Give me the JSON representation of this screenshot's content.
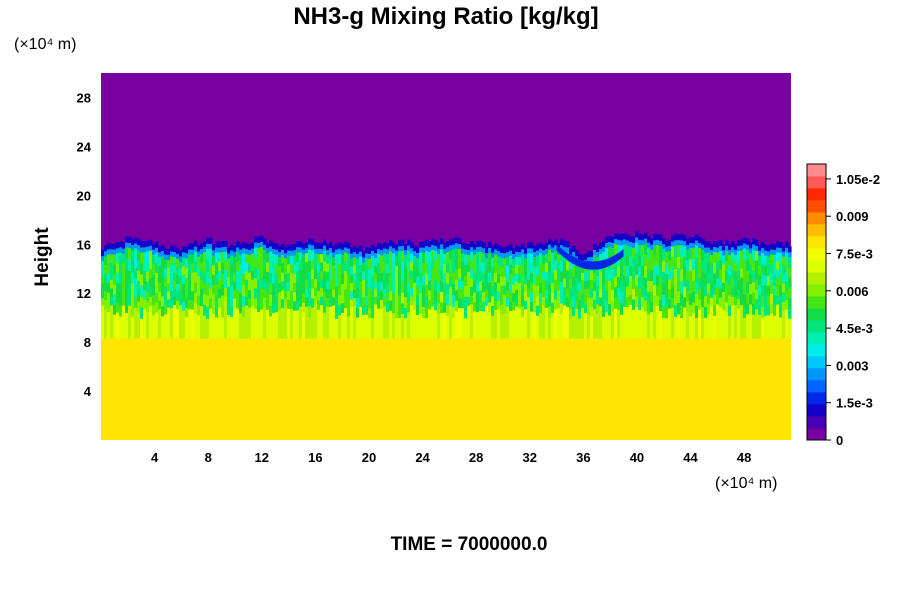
{
  "chart_data": {
    "type": "heatmap",
    "title": "NH3-g Mixing Ratio [kg/kg]",
    "ylabel": "Height",
    "xlabel": "",
    "x_unit_label": "(×10⁴ m)",
    "y_unit_label": "(×10⁴ m)",
    "x_ticks": [
      4,
      8,
      12,
      16,
      20,
      24,
      28,
      32,
      36,
      40,
      44,
      48
    ],
    "y_ticks": [
      4,
      8,
      12,
      16,
      20,
      24,
      28
    ],
    "xlim": [
      0,
      51.5
    ],
    "ylim": [
      0,
      30
    ],
    "footer": "TIME = 7000000.0",
    "colorbar": {
      "range": [
        0,
        0.0111
      ],
      "tick_values": [
        0,
        0.0015,
        0.003,
        0.0045,
        0.006,
        0.0075,
        0.009,
        0.0105
      ],
      "tick_labels": [
        "0",
        "1.5e-3",
        "0.003",
        "4.5e-3",
        "0.006",
        "7.5e-3",
        "0.009",
        "1.05e-2"
      ],
      "colors": [
        "#7800a0",
        "#4a00b4",
        "#1400c8",
        "#0028e6",
        "#0064ff",
        "#0096ff",
        "#00c8ff",
        "#00ecea",
        "#00f0b4",
        "#00e678",
        "#14dc46",
        "#46e614",
        "#82f000",
        "#b4f000",
        "#dcff00",
        "#f0ff00",
        "#ffe600",
        "#ffbe00",
        "#ff8c00",
        "#ff5000",
        "#ff2800",
        "#ff5a5a",
        "#ff8c8c"
      ]
    },
    "field_description_levels": {
      "lower_layer_value": 0.0078,
      "transition_layer_value": 0.0065,
      "cloud_layer_value": 0.0045,
      "upper_layer_value": 0
    },
    "top_boundary_profile": {
      "x": [
        0,
        2,
        4,
        6,
        8,
        10,
        12,
        14,
        16,
        18,
        20,
        22,
        24,
        26,
        28,
        30,
        32,
        34,
        36,
        38,
        40,
        42,
        44,
        46,
        48,
        50,
        51.5
      ],
      "y": [
        15.8,
        16.4,
        16.1,
        15.7,
        16.3,
        15.9,
        16.5,
        15.8,
        16.4,
        16.0,
        15.6,
        16.3,
        16.0,
        16.5,
        16.2,
        15.7,
        15.9,
        16.4,
        15.3,
        16.6,
        16.8,
        16.5,
        16.7,
        16.2,
        16.4,
        15.9,
        16.1
      ]
    }
  }
}
